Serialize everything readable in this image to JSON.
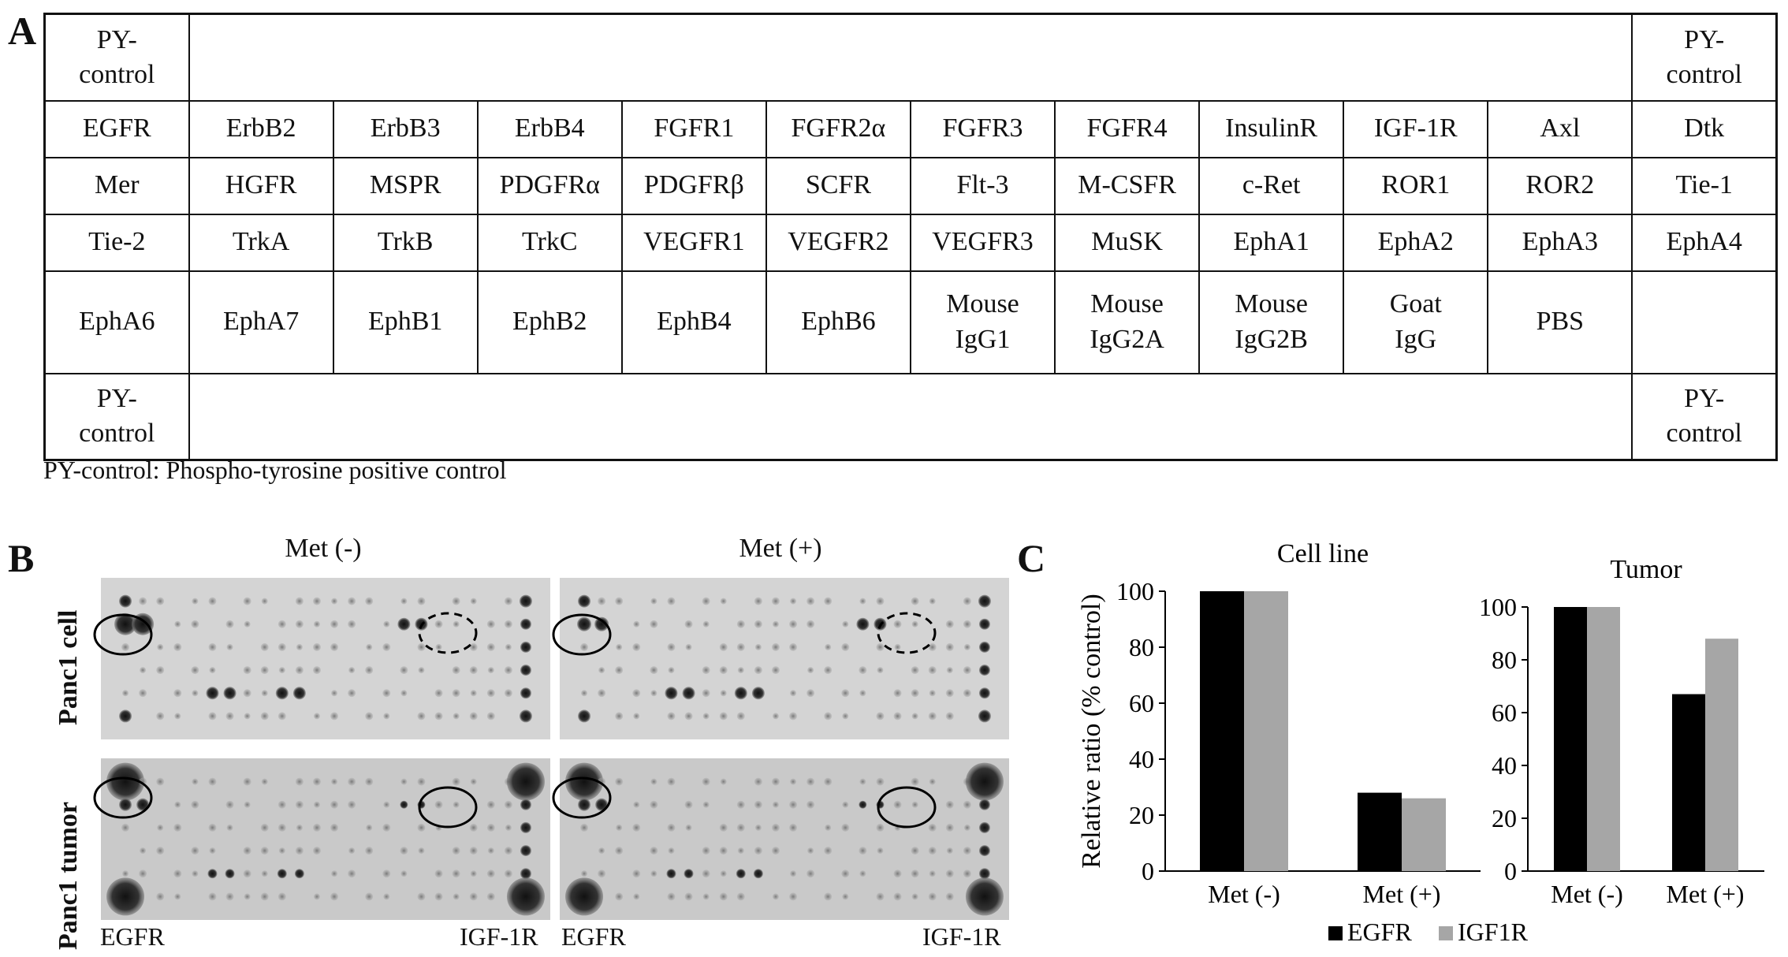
{
  "panel_a": {
    "letter": "A",
    "header_row": [
      "PY-\ncontrol",
      "PY-\ncontrol"
    ],
    "rows": [
      [
        "EGFR",
        "ErbB2",
        "ErbB3",
        "ErbB4",
        "FGFR1",
        "FGFR2α",
        "FGFR3",
        "FGFR4",
        "InsulinR",
        "IGF-1R",
        "Axl",
        "Dtk"
      ],
      [
        "Mer",
        "HGFR",
        "MSPR",
        "PDGFRα",
        "PDGFRβ",
        "SCFR",
        "Flt-3",
        "M-CSFR",
        "c-Ret",
        "ROR1",
        "ROR2",
        "Tie-1"
      ],
      [
        "Tie-2",
        "TrkA",
        "TrkB",
        "TrkC",
        "VEGFR1",
        "VEGFR2",
        "VEGFR3",
        "MuSK",
        "EphA1",
        "EphA2",
        "EphA3",
        "EphA4"
      ],
      [
        "EphA6",
        "EphA7",
        "EphB1",
        "EphB2",
        "EphB4",
        "EphB6",
        "Mouse\nIgG1",
        "Mouse\nIgG2A",
        "Mouse\nIgG2B",
        "Goat\nIgG",
        "PBS",
        ""
      ]
    ],
    "footer_row": [
      "PY-\ncontrol",
      "PY-\ncontrol"
    ],
    "note": "PY-control: Phospho-tyrosine positive control"
  },
  "panel_b": {
    "letter": "B",
    "col_titles": [
      "Met (-)",
      "Met (+)"
    ],
    "row_labels": [
      "Panc1 cell",
      "Panc1 tumor"
    ],
    "bottom_labels": [
      "EGFR",
      "IGF-1R",
      "EGFR",
      "IGF-1R"
    ]
  },
  "panel_c": {
    "letter": "C",
    "legend": [
      "EGFR",
      "IGF1R"
    ],
    "colors": {
      "egfr": "#000000",
      "igf1r": "#a6a6a6"
    }
  },
  "chart_data": [
    {
      "type": "bar",
      "title": "Cell line",
      "categories": [
        "Met (-)",
        "Met (+)"
      ],
      "series": [
        {
          "name": "EGFR",
          "values": [
            100,
            28
          ]
        },
        {
          "name": "IGF1R",
          "values": [
            100,
            26
          ]
        }
      ],
      "ylabel": "Relative ratio (% control)",
      "yticks": [
        "0",
        "20",
        "40",
        "60",
        "80",
        "100"
      ],
      "ylim": [
        0,
        100
      ]
    },
    {
      "type": "bar",
      "title": "Tumor",
      "categories": [
        "Met (-)",
        "Met (+)"
      ],
      "series": [
        {
          "name": "EGFR",
          "values": [
            100,
            67
          ]
        },
        {
          "name": "IGF1R",
          "values": [
            100,
            88
          ]
        }
      ],
      "ylabel": "",
      "yticks": [
        "0",
        "20",
        "40",
        "60",
        "80",
        "100"
      ],
      "ylim": [
        0,
        100
      ]
    }
  ]
}
